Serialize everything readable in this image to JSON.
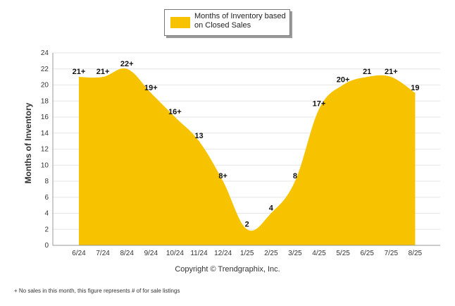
{
  "legend": {
    "label": "Months of Inventory based on Closed Sales"
  },
  "copyright": "Copyright © Trendgraphix, Inc.",
  "footnote": "+ No sales in this month, this figure represents # of for sale listings",
  "colors": {
    "fill": "#f7c200",
    "grid": "#e6e6e6",
    "axis": "#999999",
    "label": "#111111"
  },
  "chart_data": {
    "type": "area",
    "title": "",
    "xlabel": "",
    "ylabel": "Months of Inventory",
    "ylim": [
      0,
      24
    ],
    "yticks": [
      0,
      2,
      4,
      6,
      8,
      10,
      12,
      14,
      16,
      18,
      20,
      22,
      24
    ],
    "grid": true,
    "legend_position": "top-center",
    "categories": [
      "6/24",
      "7/24",
      "8/24",
      "9/24",
      "10/24",
      "11/24",
      "12/24",
      "1/25",
      "2/25",
      "3/25",
      "4/25",
      "5/25",
      "6/25",
      "7/25",
      "8/25"
    ],
    "series": [
      {
        "name": "Months of Inventory based on Closed Sales",
        "values": [
          21,
          21,
          22,
          19,
          16,
          13,
          8,
          2,
          4,
          8,
          17,
          20,
          21,
          21,
          19
        ],
        "labels": [
          "21+",
          "21+",
          "22+",
          "19+",
          "16+",
          "13",
          "8+",
          "2",
          "4",
          "8",
          "17+",
          "20+",
          "21",
          "21+",
          "19"
        ]
      }
    ]
  }
}
